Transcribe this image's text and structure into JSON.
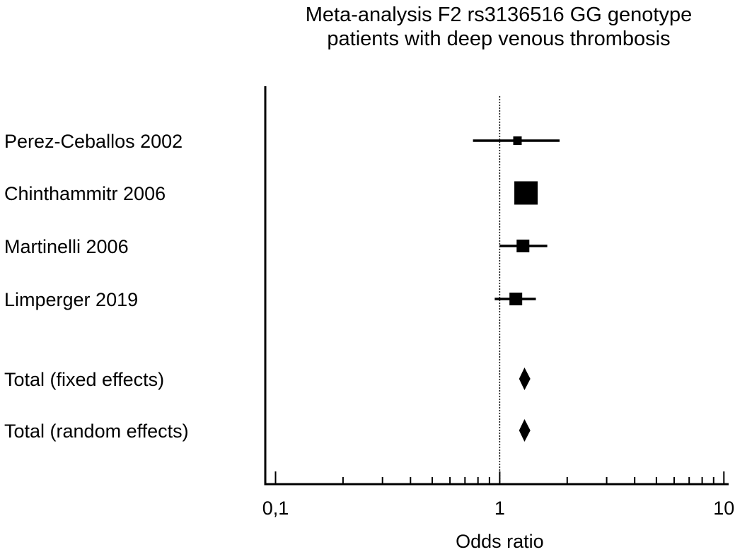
{
  "chart_data": {
    "type": "forest",
    "title_lines": [
      "Meta-analysis F2 rs3136516 GG genotype",
      "patients with deep venous thrombosis"
    ],
    "xlabel": "Odds ratio",
    "x_scale": "log",
    "xlim": [
      0.09,
      10.5
    ],
    "x_ticks": [
      {
        "value": 0.1,
        "label": "0,1"
      },
      {
        "value": 1,
        "label": "1"
      },
      {
        "value": 10,
        "label": "10"
      }
    ],
    "reference_line": 1,
    "studies": [
      {
        "name": "Perez-Ceballos 2002",
        "or": 1.2,
        "ci": [
          0.76,
          1.85
        ],
        "weight": "small"
      },
      {
        "name": "Chinthammitr 2006",
        "or": 1.31,
        "ci": [
          1.22,
          1.4
        ],
        "weight": "large"
      },
      {
        "name": "Martinelli 2006",
        "or": 1.27,
        "ci": [
          1.0,
          1.63
        ],
        "weight": "medium"
      },
      {
        "name": "Limperger 2019",
        "or": 1.18,
        "ci": [
          0.95,
          1.45
        ],
        "weight": "medium"
      }
    ],
    "totals": [
      {
        "name": "Total (fixed effects)",
        "or": 1.29,
        "ci": [
          1.22,
          1.37
        ]
      },
      {
        "name": "Total (random effects)",
        "or": 1.29,
        "ci": [
          1.22,
          1.37
        ]
      }
    ]
  }
}
